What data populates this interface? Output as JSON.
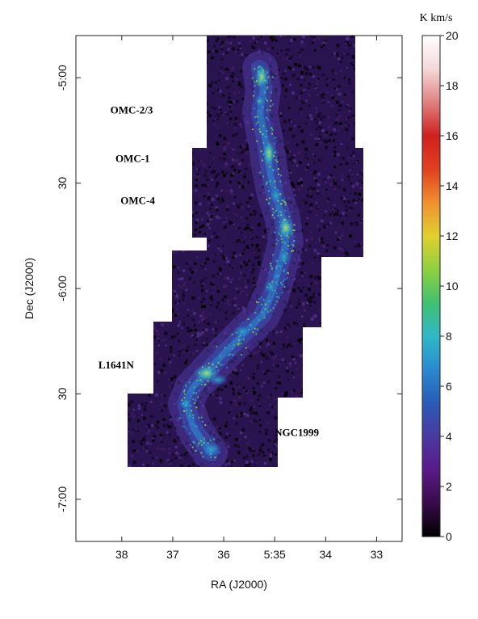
{
  "chart_data": {
    "type": "heatmap",
    "xlabel": "RA (J2000)",
    "ylabel": "Dec (J2000)",
    "x_ticks": [
      "38",
      "37",
      "36",
      "5:35",
      "34",
      "33"
    ],
    "x_tick_values_min": [
      38,
      37,
      36,
      35,
      34,
      33
    ],
    "xlim_min": [
      38.9,
      32.5
    ],
    "y_ticks": [
      "-5:00",
      "30",
      "-6:00",
      "30",
      "-7:00"
    ],
    "y_tick_values_deg": [
      -5.0,
      -5.5,
      -6.0,
      -6.5,
      -7.0
    ],
    "ylim_deg": [
      -4.8,
      -7.2
    ],
    "colorbar": {
      "unit": "K km/s",
      "ticks": [
        "0",
        "2",
        "4",
        "6",
        "8",
        "10",
        "12",
        "14",
        "16",
        "18",
        "20"
      ],
      "range": [
        0,
        20
      ],
      "colormap": [
        "#000000",
        "#3a0a4a",
        "#5a1a8a",
        "#4a3aa0",
        "#2a5ab8",
        "#2a8ad0",
        "#30b8c8",
        "#40c070",
        "#90d040",
        "#e0d030",
        "#f09030",
        "#e04020",
        "#d02020",
        "#e08080",
        "#f4d8d8",
        "#ffffff"
      ]
    },
    "regions": [
      {
        "label": "OMC-2/3",
        "ra_min": 35.5,
        "dec_deg": -5.17
      },
      {
        "label": "OMC-1",
        "ra_min": 35.4,
        "dec_deg": -5.4
      },
      {
        "label": "OMC-4",
        "ra_min": 35.3,
        "dec_deg": -5.6
      },
      {
        "label": "L1641N",
        "ra_min": 36.4,
        "dec_deg": -6.38
      },
      {
        "label": "NGC1999",
        "ra_min": 36.3,
        "dec_deg": -6.7
      }
    ]
  }
}
